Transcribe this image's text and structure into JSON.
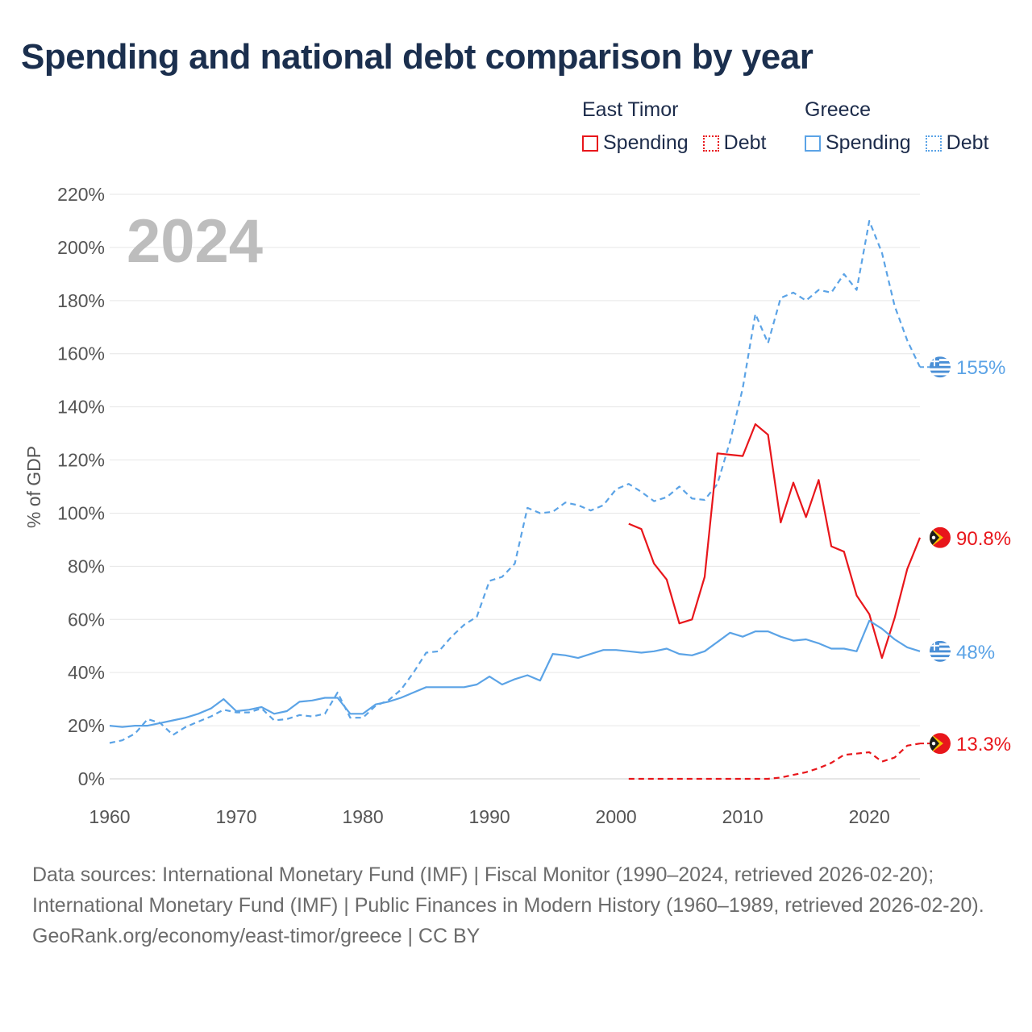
{
  "title": "Spending and national debt comparison by year",
  "current_year": "2024",
  "legend": {
    "groups": [
      {
        "country": "East Timor",
        "color": "#e8161b",
        "items": [
          {
            "label": "Spending",
            "style": "solid"
          },
          {
            "label": "Debt",
            "style": "dotted"
          }
        ]
      },
      {
        "country": "Greece",
        "color": "#5ba3e6",
        "items": [
          {
            "label": "Spending",
            "style": "solid"
          },
          {
            "label": "Debt",
            "style": "dotted"
          }
        ]
      }
    ]
  },
  "chart_data": {
    "type": "line",
    "title": "Spending and national debt comparison by year",
    "xlabel": "",
    "ylabel": "% of GDP",
    "xlim": [
      1960,
      2024
    ],
    "ylim": [
      0,
      220
    ],
    "x_ticks": [
      1960,
      1970,
      1980,
      1990,
      2000,
      2010,
      2020
    ],
    "y_ticks": [
      0,
      20,
      40,
      60,
      80,
      100,
      120,
      140,
      160,
      180,
      200,
      220
    ],
    "y_tick_labels": [
      "0%",
      "20%",
      "40%",
      "60%",
      "80%",
      "100%",
      "120%",
      "140%",
      "160%",
      "180%",
      "200%",
      "220%"
    ],
    "x_tick_labels": [
      "1960",
      "1970",
      "1980",
      "1990",
      "2000",
      "2010",
      "2020"
    ],
    "grid": true,
    "series": [
      {
        "name": "Greece Debt",
        "country": "Greece",
        "metric": "Debt",
        "color": "#5ba3e6",
        "dash": "dashed",
        "end_label": "155%",
        "points": [
          [
            1960,
            13.5
          ],
          [
            1961,
            14.5
          ],
          [
            1962,
            17
          ],
          [
            1963,
            22.5
          ],
          [
            1964,
            21
          ],
          [
            1965,
            16.5
          ],
          [
            1966,
            19.5
          ],
          [
            1967,
            21.5
          ],
          [
            1968,
            23.5
          ],
          [
            1969,
            26
          ],
          [
            1970,
            25
          ],
          [
            1971,
            25
          ],
          [
            1972,
            26.5
          ],
          [
            1973,
            22
          ],
          [
            1974,
            22.5
          ],
          [
            1975,
            24
          ],
          [
            1976,
            23.5
          ],
          [
            1977,
            24.5
          ],
          [
            1978,
            32.5
          ],
          [
            1979,
            23
          ],
          [
            1980,
            23
          ],
          [
            1981,
            27.5
          ],
          [
            1982,
            29.5
          ],
          [
            1983,
            33.5
          ],
          [
            1984,
            40
          ],
          [
            1985,
            47.5
          ],
          [
            1986,
            48
          ],
          [
            1987,
            53.5
          ],
          [
            1988,
            58
          ],
          [
            1989,
            61
          ],
          [
            1990,
            74.5
          ],
          [
            1991,
            76
          ],
          [
            1992,
            81
          ],
          [
            1993,
            102
          ],
          [
            1994,
            100
          ],
          [
            1995,
            100.5
          ],
          [
            1996,
            104
          ],
          [
            1997,
            103
          ],
          [
            1998,
            101
          ],
          [
            1999,
            103
          ],
          [
            2000,
            109
          ],
          [
            2001,
            111
          ],
          [
            2002,
            108
          ],
          [
            2003,
            104.5
          ],
          [
            2004,
            106
          ],
          [
            2005,
            110
          ],
          [
            2006,
            105.5
          ],
          [
            2007,
            105
          ],
          [
            2008,
            111
          ],
          [
            2009,
            127
          ],
          [
            2010,
            147
          ],
          [
            2011,
            175
          ],
          [
            2012,
            164
          ],
          [
            2013,
            181
          ],
          [
            2014,
            183
          ],
          [
            2015,
            180
          ],
          [
            2016,
            184
          ],
          [
            2017,
            183
          ],
          [
            2018,
            190
          ],
          [
            2019,
            184
          ],
          [
            2020,
            210
          ],
          [
            2021,
            198
          ],
          [
            2022,
            178
          ],
          [
            2023,
            165
          ],
          [
            2024,
            155
          ]
        ]
      },
      {
        "name": "East Timor Spending",
        "country": "East Timor",
        "metric": "Spending",
        "color": "#e8161b",
        "dash": "solid",
        "end_label": "90.8%",
        "points": [
          [
            2001,
            96
          ],
          [
            2002,
            94
          ],
          [
            2003,
            81
          ],
          [
            2004,
            75
          ],
          [
            2005,
            58.5
          ],
          [
            2006,
            60
          ],
          [
            2007,
            76
          ],
          [
            2008,
            122.5
          ],
          [
            2009,
            122
          ],
          [
            2010,
            121.5
          ],
          [
            2011,
            133.5
          ],
          [
            2012,
            129.5
          ],
          [
            2013,
            96.5
          ],
          [
            2014,
            111.5
          ],
          [
            2015,
            98.5
          ],
          [
            2016,
            112.5
          ],
          [
            2017,
            87.5
          ],
          [
            2018,
            85.5
          ],
          [
            2019,
            69
          ],
          [
            2020,
            62
          ],
          [
            2021,
            45.5
          ],
          [
            2022,
            60.5
          ],
          [
            2023,
            79
          ],
          [
            2024,
            90.8
          ]
        ]
      },
      {
        "name": "Greece Spending",
        "country": "Greece",
        "metric": "Spending",
        "color": "#5ba3e6",
        "dash": "solid",
        "end_label": "48%",
        "points": [
          [
            1960,
            20
          ],
          [
            1961,
            19.5
          ],
          [
            1962,
            20
          ],
          [
            1963,
            20
          ],
          [
            1964,
            21
          ],
          [
            1965,
            22
          ],
          [
            1966,
            23
          ],
          [
            1967,
            24.5
          ],
          [
            1968,
            26.5
          ],
          [
            1969,
            30
          ],
          [
            1970,
            25.5
          ],
          [
            1971,
            26
          ],
          [
            1972,
            27
          ],
          [
            1973,
            24.5
          ],
          [
            1974,
            25.5
          ],
          [
            1975,
            29
          ],
          [
            1976,
            29.5
          ],
          [
            1977,
            30.5
          ],
          [
            1978,
            30.5
          ],
          [
            1979,
            24.5
          ],
          [
            1980,
            24.5
          ],
          [
            1981,
            28
          ],
          [
            1982,
            29
          ],
          [
            1983,
            30.5
          ],
          [
            1984,
            32.5
          ],
          [
            1985,
            34.5
          ],
          [
            1986,
            34.5
          ],
          [
            1987,
            34.5
          ],
          [
            1988,
            34.5
          ],
          [
            1989,
            35.5
          ],
          [
            1990,
            38.5
          ],
          [
            1991,
            35.5
          ],
          [
            1992,
            37.5
          ],
          [
            1993,
            39
          ],
          [
            1994,
            37
          ],
          [
            1995,
            47
          ],
          [
            1996,
            46.5
          ],
          [
            1997,
            45.5
          ],
          [
            1998,
            47
          ],
          [
            1999,
            48.5
          ],
          [
            2000,
            48.5
          ],
          [
            2001,
            48
          ],
          [
            2002,
            47.5
          ],
          [
            2003,
            48
          ],
          [
            2004,
            49
          ],
          [
            2005,
            47
          ],
          [
            2006,
            46.5
          ],
          [
            2007,
            48
          ],
          [
            2008,
            51.5
          ],
          [
            2009,
            55
          ],
          [
            2010,
            53.5
          ],
          [
            2011,
            55.5
          ],
          [
            2012,
            55.5
          ],
          [
            2013,
            53.5
          ],
          [
            2014,
            52
          ],
          [
            2015,
            52.5
          ],
          [
            2016,
            51
          ],
          [
            2017,
            49
          ],
          [
            2018,
            49
          ],
          [
            2019,
            48
          ],
          [
            2020,
            59.5
          ],
          [
            2021,
            56.5
          ],
          [
            2022,
            52.5
          ],
          [
            2023,
            49.5
          ],
          [
            2024,
            48
          ]
        ]
      },
      {
        "name": "East Timor Debt",
        "country": "East Timor",
        "metric": "Debt",
        "color": "#e8161b",
        "dash": "dashed",
        "end_label": "13.3%",
        "points": [
          [
            2001,
            0
          ],
          [
            2002,
            0
          ],
          [
            2003,
            0
          ],
          [
            2004,
            0
          ],
          [
            2005,
            0
          ],
          [
            2006,
            0
          ],
          [
            2007,
            0
          ],
          [
            2008,
            0
          ],
          [
            2009,
            0
          ],
          [
            2010,
            0
          ],
          [
            2011,
            0
          ],
          [
            2012,
            0
          ],
          [
            2013,
            0.5
          ],
          [
            2014,
            1.5
          ],
          [
            2015,
            2.5
          ],
          [
            2016,
            4
          ],
          [
            2017,
            6
          ],
          [
            2018,
            9
          ],
          [
            2019,
            9.5
          ],
          [
            2020,
            10
          ],
          [
            2021,
            6.5
          ],
          [
            2022,
            8
          ],
          [
            2023,
            12.5
          ],
          [
            2024,
            13.3
          ]
        ]
      }
    ]
  },
  "footer": {
    "sources": "Data sources: International Monetary Fund (IMF) | Fiscal Monitor (1990–2024, retrieved 2026-02-20); International Monetary Fund (IMF) | Public Finances in Modern History (1960–1989, retrieved 2026-02-20).",
    "credit": "GeoRank.org/economy/east-timor/greece | CC BY"
  }
}
